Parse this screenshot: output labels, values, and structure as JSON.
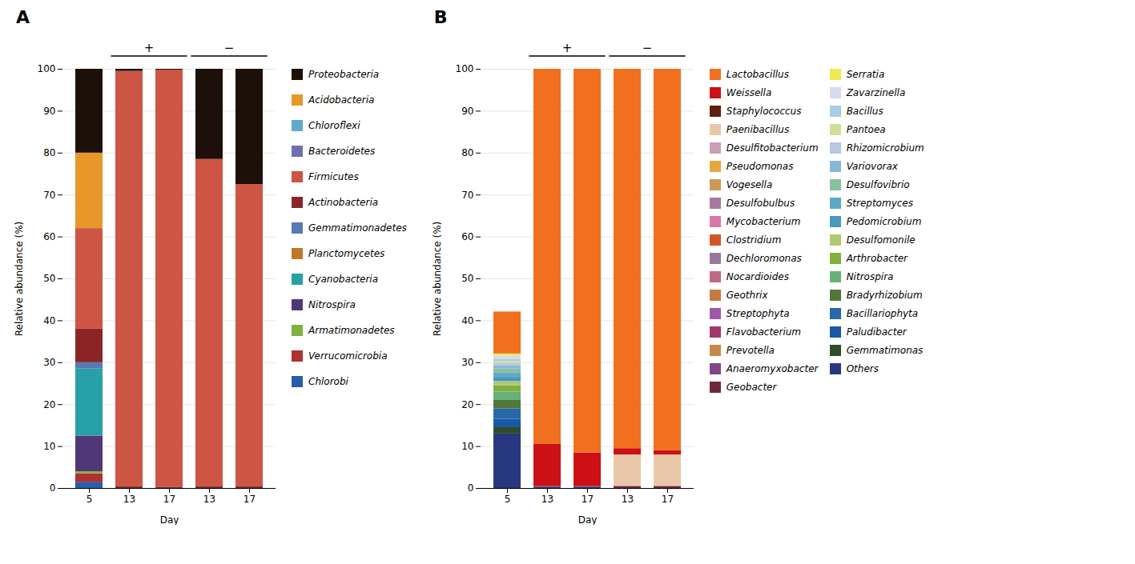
{
  "chart_data": [
    {
      "type": "bar",
      "stacked": true,
      "title": "A",
      "x_label": "Day",
      "y_label": "Relative abundance (%)",
      "categories": [
        "5",
        "13",
        "17",
        "13",
        "17"
      ],
      "series": [
        {
          "name": "Chlorobi",
          "color": "#2a5caa",
          "values": [
            1.5,
            0.0,
            0.0,
            0.0,
            0.0
          ]
        },
        {
          "name": "Verrucomicrobia",
          "color": "#b03030",
          "values": [
            2.0,
            0.0,
            0.0,
            0.0,
            0.0
          ]
        },
        {
          "name": "Armatimonadetes",
          "color": "#7fb040",
          "values": [
            0.5,
            0.0,
            0.0,
            0.0,
            0.0
          ]
        },
        {
          "name": "Nitrospira",
          "color": "#503878",
          "values": [
            8.5,
            0.0,
            0.0,
            0.0,
            0.0
          ]
        },
        {
          "name": "Cyanobacteria",
          "color": "#28a0a8",
          "values": [
            16.0,
            0.0,
            0.0,
            0.0,
            0.0
          ]
        },
        {
          "name": "Planctomycetes",
          "color": "#c07828",
          "values": [
            0.0,
            0.0,
            0.0,
            0.0,
            0.0
          ]
        },
        {
          "name": "Gemmatimonadetes",
          "color": "#5878b8",
          "values": [
            1.5,
            0.0,
            0.0,
            0.0,
            0.0
          ]
        },
        {
          "name": "Actinobacteria",
          "color": "#8b2525",
          "values": [
            8.0,
            0.5,
            0.3,
            0.5,
            0.5
          ]
        },
        {
          "name": "Firmicutes",
          "color": "#cc5544",
          "values": [
            24.0,
            99.0,
            99.5,
            78.0,
            72.0
          ]
        },
        {
          "name": "Bacteroidetes",
          "color": "#7070b0",
          "values": [
            0.0,
            0.0,
            0.0,
            0.0,
            0.0
          ]
        },
        {
          "name": "Chloroflexi",
          "color": "#5faacc",
          "values": [
            0.0,
            0.0,
            0.0,
            0.0,
            0.0
          ]
        },
        {
          "name": "Acidobacteria",
          "color": "#e89828",
          "values": [
            18.0,
            0.0,
            0.0,
            0.0,
            0.0
          ]
        },
        {
          "name": "Proteobacteria",
          "color": "#1c1008",
          "values": [
            20.0,
            0.5,
            0.2,
            21.5,
            27.5
          ]
        }
      ],
      "ylim": [
        0,
        100
      ],
      "yticks": [
        0,
        10,
        20,
        30,
        40,
        50,
        60,
        70,
        80,
        90,
        100
      ],
      "grid": true,
      "legend": "right",
      "annotations": [
        {
          "text": "+",
          "categories": [
            1,
            2
          ]
        },
        {
          "text": "−",
          "categories": [
            3,
            4
          ]
        }
      ]
    },
    {
      "type": "bar",
      "stacked": true,
      "title": "B",
      "x_label": "Day",
      "y_label": "Relative abundance (%)",
      "categories": [
        "5",
        "13",
        "17",
        "13",
        "17"
      ],
      "series": [
        {
          "name": "Others",
          "color": "#283880",
          "values": [
            13.0,
            0.3,
            0.3,
            0.0,
            0.0
          ]
        },
        {
          "name": "Gemmatimonas",
          "color": "#304c28",
          "values": [
            1.5,
            0.0,
            0.0,
            0.0,
            0.0
          ]
        },
        {
          "name": "Paludibacter",
          "color": "#1858a8",
          "values": [
            2.0,
            0.0,
            0.0,
            0.0,
            0.0
          ]
        },
        {
          "name": "Bacillariophyta",
          "color": "#2868a8",
          "values": [
            2.5,
            0.0,
            0.0,
            0.0,
            0.0
          ]
        },
        {
          "name": "Bradyrhizobium",
          "color": "#507838",
          "values": [
            2.0,
            0.0,
            0.0,
            0.0,
            0.0
          ]
        },
        {
          "name": "Nitrospira",
          "color": "#68b078",
          "values": [
            2.0,
            0.0,
            0.0,
            0.0,
            0.0
          ]
        },
        {
          "name": "Arthrobacter",
          "color": "#80b040",
          "values": [
            1.5,
            0.0,
            0.0,
            0.0,
            0.0
          ]
        },
        {
          "name": "Desulfomonile",
          "color": "#b0c870",
          "values": [
            1.0,
            0.0,
            0.0,
            0.0,
            0.0
          ]
        },
        {
          "name": "Pedomicrobium",
          "color": "#4898c0",
          "values": [
            1.0,
            0.0,
            0.0,
            0.0,
            0.0
          ]
        },
        {
          "name": "Streptomyces",
          "color": "#60a8c8",
          "values": [
            1.0,
            0.0,
            0.0,
            0.0,
            0.0
          ]
        },
        {
          "name": "Desulfovibrio",
          "color": "#88c0a0",
          "values": [
            1.0,
            0.0,
            0.0,
            0.0,
            0.0
          ]
        },
        {
          "name": "Variovorax",
          "color": "#88b8d8",
          "values": [
            0.8,
            0.0,
            0.0,
            0.0,
            0.0
          ]
        },
        {
          "name": "Rhizomicrobium",
          "color": "#b8c8e0",
          "values": [
            0.5,
            0.0,
            0.0,
            0.0,
            0.0
          ]
        },
        {
          "name": "Pantoea",
          "color": "#d0df98",
          "values": [
            0.5,
            0.0,
            0.0,
            0.0,
            0.0
          ]
        },
        {
          "name": "Bacillus",
          "color": "#a8cce0",
          "values": [
            0.5,
            0.0,
            0.0,
            0.0,
            0.0
          ]
        },
        {
          "name": "Zavarzinella",
          "color": "#d8d8ef",
          "values": [
            0.8,
            0.0,
            0.0,
            0.0,
            0.0
          ]
        },
        {
          "name": "Serratia",
          "color": "#f0e855",
          "values": [
            0.5,
            0.0,
            0.0,
            0.0,
            0.0
          ]
        },
        {
          "name": "Geobacter",
          "color": "#702838",
          "values": [
            0.0,
            0.2,
            0.2,
            0.5,
            0.5
          ]
        },
        {
          "name": "Anaeromyxobacter",
          "color": "#804888",
          "values": [
            0.0,
            0.0,
            0.0,
            0.0,
            0.0
          ]
        },
        {
          "name": "Prevotella",
          "color": "#c88848",
          "values": [
            0.0,
            0.0,
            0.0,
            0.0,
            0.0
          ]
        },
        {
          "name": "Flavobacterium",
          "color": "#a03868",
          "values": [
            0.0,
            0.0,
            0.0,
            0.0,
            0.0
          ]
        },
        {
          "name": "Streptophyta",
          "color": "#a058a8",
          "values": [
            0.0,
            0.0,
            0.0,
            0.0,
            0.0
          ]
        },
        {
          "name": "Geothrix",
          "color": "#c87840",
          "values": [
            0.0,
            0.0,
            0.0,
            0.0,
            0.0
          ]
        },
        {
          "name": "Nocardioides",
          "color": "#c06888",
          "values": [
            0.0,
            0.0,
            0.0,
            0.0,
            0.0
          ]
        },
        {
          "name": "Dechloromonas",
          "color": "#9878a0",
          "values": [
            0.0,
            0.0,
            0.0,
            0.0,
            0.0
          ]
        },
        {
          "name": "Clostridium",
          "color": "#d05828",
          "values": [
            0.0,
            0.0,
            0.0,
            0.0,
            0.0
          ]
        },
        {
          "name": "Mycobacterium",
          "color": "#d878a8",
          "values": [
            0.0,
            0.0,
            0.0,
            0.0,
            0.0
          ]
        },
        {
          "name": "Desulfobulbus",
          "color": "#a878a0",
          "values": [
            0.0,
            0.0,
            0.0,
            0.0,
            0.0
          ]
        },
        {
          "name": "Vogesella",
          "color": "#d09858",
          "values": [
            0.0,
            0.0,
            0.0,
            0.0,
            0.0
          ]
        },
        {
          "name": "Pseudomonas",
          "color": "#e8a840",
          "values": [
            0.0,
            0.0,
            0.0,
            0.0,
            0.0
          ]
        },
        {
          "name": "Desulfitobacterium",
          "color": "#c8a0b8",
          "values": [
            0.0,
            0.0,
            0.0,
            0.0,
            0.0
          ]
        },
        {
          "name": "Paenibacillus",
          "color": "#e8c8a8",
          "values": [
            0.0,
            0.0,
            0.0,
            7.5,
            7.5
          ]
        },
        {
          "name": "Staphylococcus",
          "color": "#5c2010",
          "values": [
            0.0,
            0.0,
            0.0,
            0.0,
            0.0
          ]
        },
        {
          "name": "Weissella",
          "color": "#cc1015",
          "values": [
            0.0,
            10.0,
            8.0,
            1.5,
            1.0
          ]
        },
        {
          "name": "Lactobacillus",
          "color": "#f07020",
          "values": [
            10.0,
            89.5,
            91.5,
            90.5,
            91.0
          ]
        }
      ],
      "ylim": [
        0,
        100
      ],
      "yticks": [
        0,
        10,
        20,
        30,
        40,
        50,
        60,
        70,
        80,
        90,
        100
      ],
      "grid": true,
      "legend": "right",
      "annotations": [
        {
          "text": "+",
          "categories": [
            1,
            2
          ]
        },
        {
          "text": "−",
          "categories": [
            3,
            4
          ]
        }
      ]
    }
  ]
}
